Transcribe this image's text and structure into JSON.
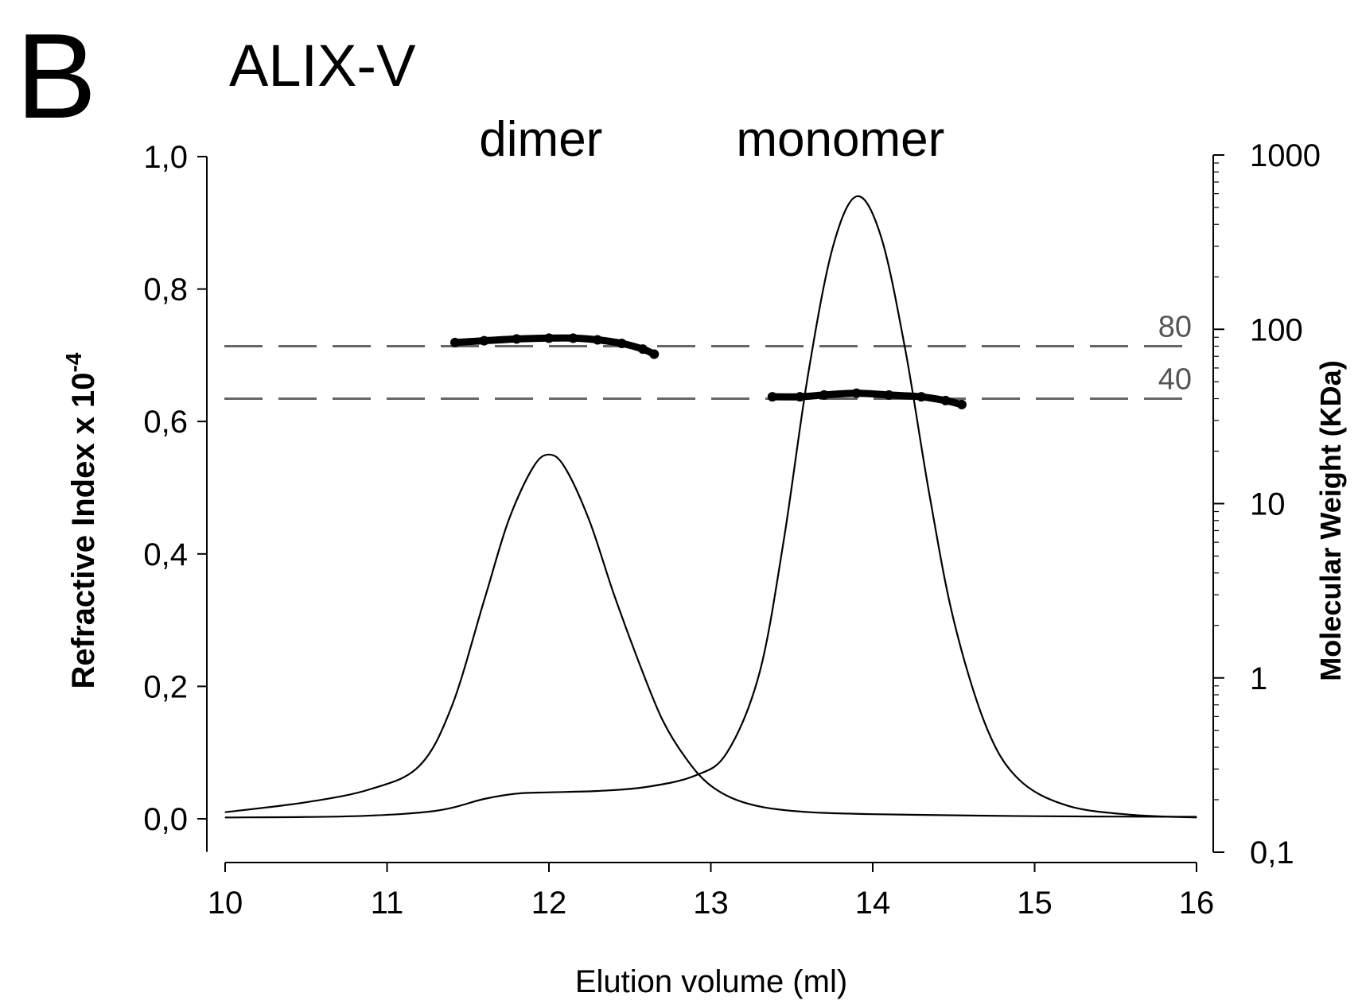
{
  "panel_label": "B",
  "chart_data": {
    "type": "line",
    "title": "ALIX-V",
    "xlabel": "Elution volume (ml)",
    "ylabel_left_main": "Refractive Index x 10",
    "ylabel_left_exponent": "-4",
    "ylabel_right": "Molecular Weight (KDa)",
    "xlim": [
      10,
      16
    ],
    "ylim_left": [
      -0.05,
      1.0
    ],
    "ylim_right": [
      0.1,
      1000
    ],
    "y_right_scale": "log",
    "x_ticks": [
      10,
      11,
      12,
      13,
      14,
      15,
      16
    ],
    "x_tick_labels": [
      "10",
      "11",
      "12",
      "13",
      "14",
      "15",
      "16"
    ],
    "y_left_ticks": [
      0.0,
      0.2,
      0.4,
      0.6,
      0.8,
      1.0
    ],
    "y_left_tick_labels": [
      "0,0",
      "0,2",
      "0,4",
      "0,6",
      "0,8",
      "1,0"
    ],
    "y_right_ticks": [
      0.1,
      1,
      10,
      100,
      1000
    ],
    "y_right_tick_labels": [
      "0,1",
      "1",
      "10",
      "100",
      "1000"
    ],
    "annotations": [
      {
        "text": "dimer",
        "x": 11.95
      },
      {
        "text": "monomer",
        "x": 13.8
      }
    ],
    "reference_lines": [
      {
        "label": "80",
        "mw": 80
      },
      {
        "label": "40",
        "mw": 40
      }
    ],
    "series": [
      {
        "axis": "left",
        "style": "solid-thin",
        "x": [
          10.0,
          10.5,
          10.9,
          11.2,
          11.4,
          11.6,
          11.75,
          11.9,
          12.0,
          12.1,
          12.25,
          12.4,
          12.55,
          12.7,
          12.85,
          13.0,
          13.2,
          13.5,
          14.0,
          15.0,
          16.0
        ],
        "values": [
          0.01,
          0.025,
          0.045,
          0.08,
          0.17,
          0.33,
          0.45,
          0.53,
          0.55,
          0.53,
          0.45,
          0.34,
          0.24,
          0.15,
          0.09,
          0.05,
          0.025,
          0.012,
          0.007,
          0.004,
          0.003
        ]
      },
      {
        "axis": "left",
        "style": "solid-thin",
        "x": [
          10.0,
          10.8,
          11.3,
          11.6,
          11.8,
          12.0,
          12.3,
          12.6,
          12.9,
          13.1,
          13.3,
          13.45,
          13.6,
          13.75,
          13.9,
          14.05,
          14.2,
          14.35,
          14.5,
          14.7,
          14.9,
          15.2,
          15.6,
          16.0
        ],
        "values": [
          0.002,
          0.004,
          0.012,
          0.03,
          0.038,
          0.04,
          0.042,
          0.048,
          0.065,
          0.1,
          0.22,
          0.42,
          0.67,
          0.86,
          0.94,
          0.88,
          0.71,
          0.49,
          0.3,
          0.14,
          0.06,
          0.02,
          0.006,
          0.002
        ]
      },
      {
        "name": "dimer",
        "axis": "right",
        "style": "thick-points",
        "x": [
          11.42,
          11.6,
          11.8,
          12.0,
          12.15,
          12.3,
          12.45,
          12.58,
          12.65
        ],
        "values": [
          84,
          86,
          88,
          89,
          89,
          87,
          83,
          77,
          72
        ]
      },
      {
        "name": "monomer",
        "axis": "right",
        "style": "thick-points",
        "x": [
          13.38,
          13.55,
          13.7,
          13.9,
          14.1,
          14.3,
          14.45,
          14.55
        ],
        "values": [
          41,
          41,
          42,
          43,
          42,
          41,
          39,
          37
        ]
      }
    ]
  }
}
